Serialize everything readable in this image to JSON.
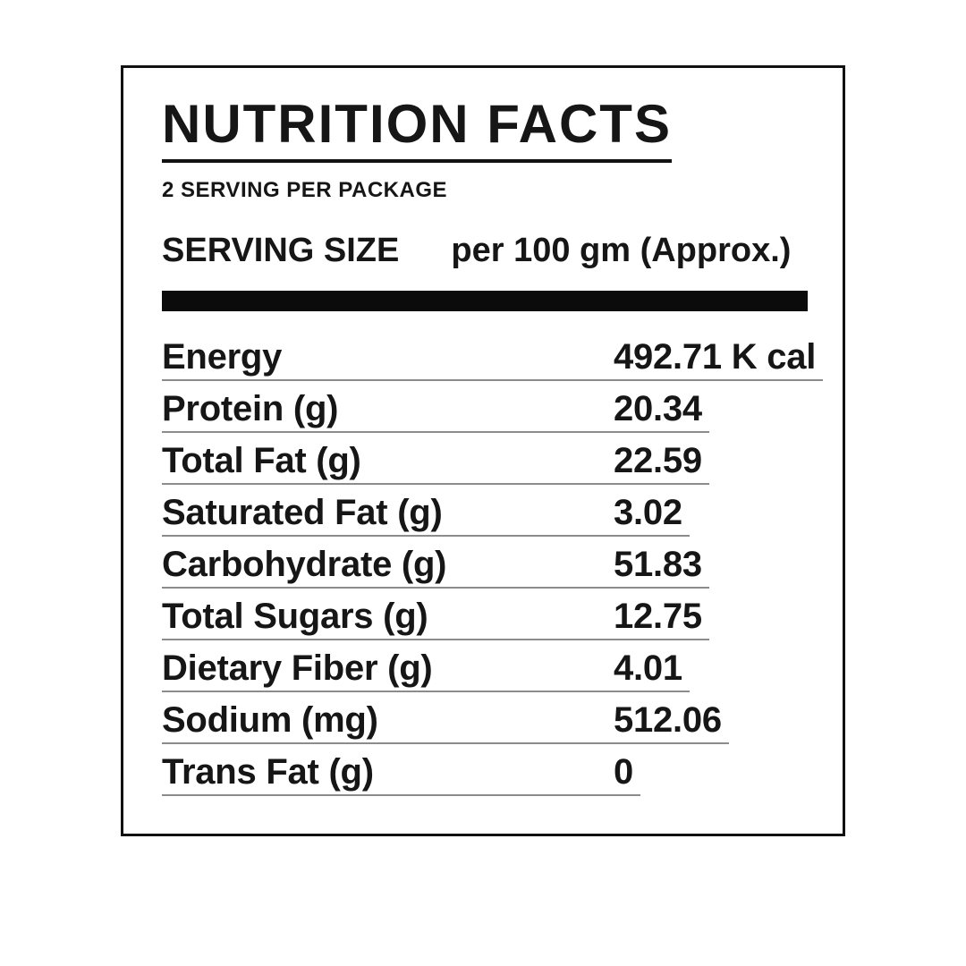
{
  "label": {
    "title": "NUTRITION FACTS",
    "servings_statement": "2 SERVING PER PACKAGE",
    "serving_size": {
      "label": "SERVING SIZE",
      "value": "per 100 gm (Approx.)"
    },
    "rows": [
      {
        "name": "Energy",
        "value": "492.71 K cal"
      },
      {
        "name": "Protein (g)",
        "value": "20.34"
      },
      {
        "name": "Total Fat (g)",
        "value": "22.59"
      },
      {
        "name": "Saturated Fat (g)",
        "value": "3.02"
      },
      {
        "name": "Carbohydrate (g)",
        "value": "51.83"
      },
      {
        "name": "Total Sugars (g)",
        "value": "12.75"
      },
      {
        "name": "Dietary Fiber (g)",
        "value": "4.01"
      },
      {
        "name": "Sodium (mg)",
        "value": "512.06"
      },
      {
        "name": "Trans Fat (g)",
        "value": "0"
      }
    ],
    "colors": {
      "text": "#161616",
      "border": "#111111",
      "bar": "#0b0b0b",
      "divider": "#8c8c8c",
      "background": "#ffffff"
    }
  }
}
